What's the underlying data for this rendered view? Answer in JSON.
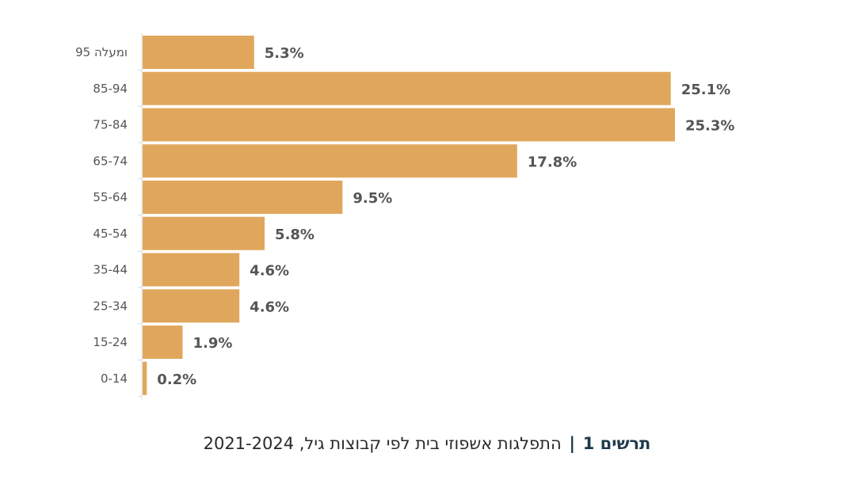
{
  "chart_data": {
    "type": "bar",
    "orientation": "horizontal",
    "categories": [
      "95 ומעלה",
      "85-94",
      "75-84",
      "65-74",
      "55-64",
      "45-54",
      "35-44",
      "25-34",
      "15-24",
      "0-14"
    ],
    "values": [
      5.3,
      25.1,
      25.3,
      17.8,
      9.5,
      5.8,
      4.6,
      4.6,
      1.9,
      0.2
    ],
    "value_labels": [
      "5.3%",
      "25.1%",
      "25.3%",
      "17.8%",
      "9.5%",
      "5.8%",
      "4.6%",
      "4.6%",
      "1.9%",
      "0.2%"
    ],
    "unit": "%",
    "xlim": [
      0,
      25.3
    ],
    "grid": false,
    "legend": "none",
    "bar_color": "#e0a75c"
  },
  "caption": {
    "lead": "תרשים 1",
    "separator": "|",
    "text": "התפלגות אשפוזי בית לפי קבוצות גיל, 2021-2024"
  }
}
